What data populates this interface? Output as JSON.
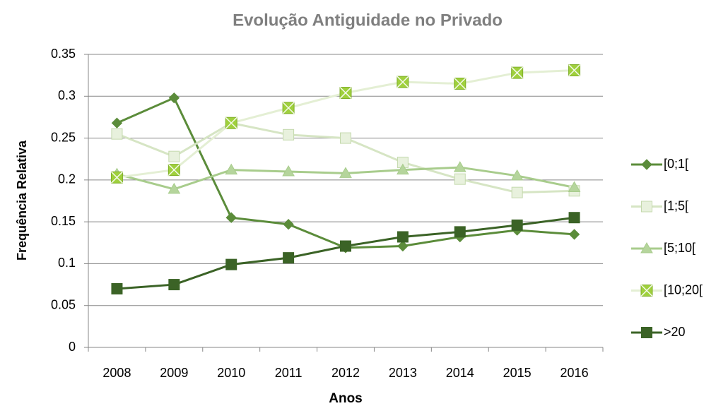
{
  "chart_data": {
    "type": "line",
    "title": "Evolução Antiguidade no Privado",
    "x_label": "Anos",
    "y_label": "Frequência Relativa",
    "categories": [
      "2008",
      "2009",
      "2010",
      "2011",
      "2012",
      "2013",
      "2014",
      "2015",
      "2016"
    ],
    "ylim": [
      0,
      0.35
    ],
    "yticks": [
      0,
      0.05,
      0.1,
      0.15,
      0.2,
      0.25,
      0.3,
      0.35
    ],
    "grid": true,
    "legend": "right",
    "series": [
      {
        "name": "[0;1[",
        "color": "#5b8c3a",
        "marker": "diamond",
        "marker_color": "#5b8c3a",
        "values": [
          0.268,
          0.298,
          0.155,
          0.147,
          0.119,
          0.121,
          0.132,
          0.14,
          0.135
        ]
      },
      {
        "name": "[1;5[",
        "color": "#d6e5c4",
        "marker": "square",
        "marker_color": "#e8f1dd",
        "values": [
          0.255,
          0.228,
          0.268,
          0.254,
          0.25,
          0.221,
          0.201,
          0.185,
          0.187
        ]
      },
      {
        "name": "[5;10[",
        "color": "#a8cc8c",
        "marker": "triangle",
        "marker_color": "#b5d59c",
        "values": [
          0.207,
          0.189,
          0.212,
          0.21,
          0.208,
          0.212,
          0.215,
          0.205,
          0.191
        ]
      },
      {
        "name": "[10;20[",
        "color": "#e4efd4",
        "marker": "xsquare",
        "marker_color": "#9fd03c",
        "values": [
          0.203,
          0.212,
          0.268,
          0.286,
          0.304,
          0.317,
          0.315,
          0.328,
          0.331
        ]
      },
      {
        "name": ">20",
        "color": "#3b6326",
        "marker": "square",
        "marker_color": "#3b6326",
        "values": [
          0.07,
          0.075,
          0.099,
          0.107,
          0.121,
          0.132,
          0.138,
          0.146,
          0.155
        ]
      }
    ]
  }
}
